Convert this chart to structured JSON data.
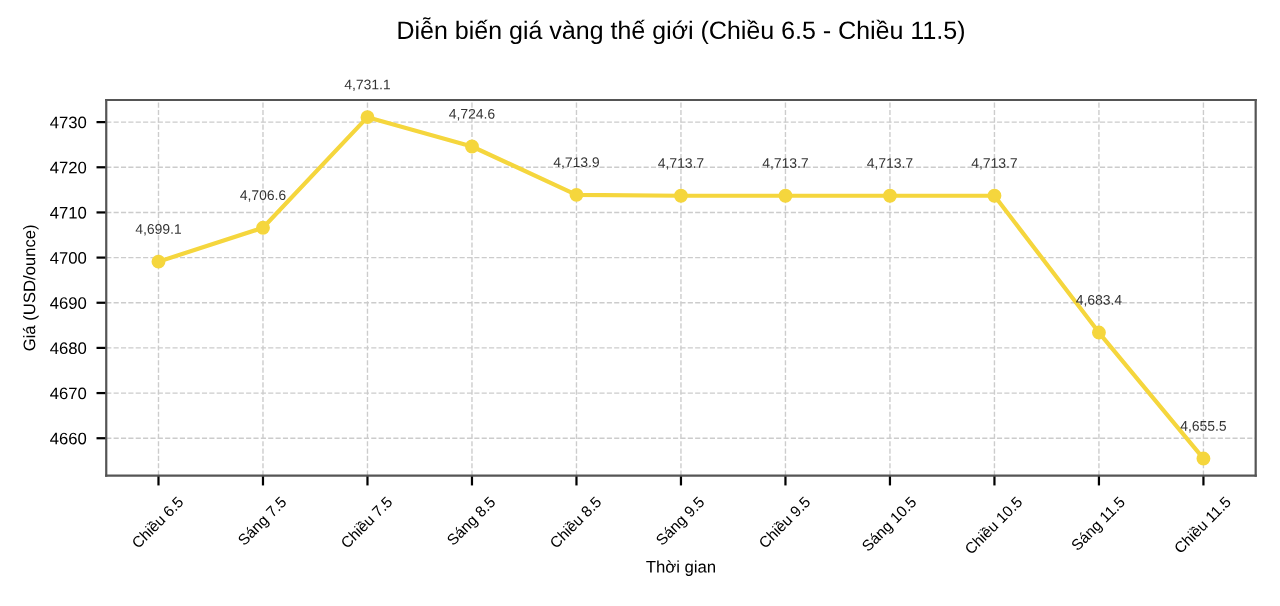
{
  "chart_data": {
    "type": "line",
    "title": "Diễn biến giá vàng thế giới (Chiều 6.5 - Chiều 11.5)",
    "xlabel": "Thời gian",
    "ylabel": "Giá (USD/ounce)",
    "categories": [
      "Chiều 6.5",
      "Sáng 7.5",
      "Chiều 7.5",
      "Sáng 8.5",
      "Chiều 8.5",
      "Sáng 9.5",
      "Chiều 9.5",
      "Sáng 10.5",
      "Chiều 10.5",
      "Sáng 11.5",
      "Chiều 11.5"
    ],
    "series": [
      {
        "color": "#f5d63d",
        "values": [
          4699.1,
          4706.6,
          4731.1,
          4724.6,
          4713.9,
          4713.7,
          4713.7,
          4713.7,
          4713.7,
          4683.4,
          4655.5
        ],
        "value_labels": [
          "4,699.1",
          "4,706.6",
          "4,731.1",
          "4,724.6",
          "4,713.9",
          "4,713.7",
          "4,713.7",
          "4,713.7",
          "4,713.7",
          "4,683.4",
          "4,655.5"
        ]
      }
    ],
    "ylim": [
      4651.7,
      4734.9
    ],
    "yticks": [
      4660,
      4670,
      4680,
      4690,
      4700,
      4710,
      4720,
      4730
    ],
    "grid": true,
    "marker": "circle",
    "line_style": "solid"
  }
}
